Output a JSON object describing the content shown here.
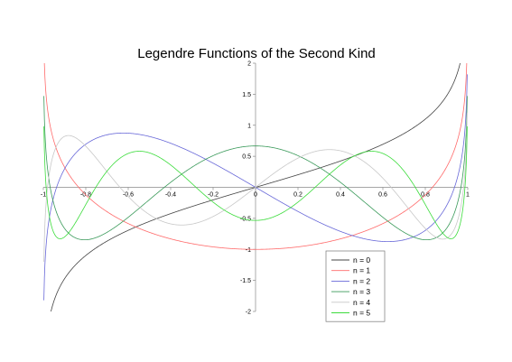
{
  "chart_data": {
    "type": "line",
    "title": "Legendre Functions of the Second Kind",
    "xlabel": "",
    "ylabel": "",
    "xlim": [
      -1,
      1
    ],
    "ylim": [
      -2,
      2
    ],
    "grid": false,
    "legend_position": "bottom-right",
    "x_ticks": [
      -1,
      -0.8,
      -0.6,
      -0.4,
      -0.2,
      0,
      0.2,
      0.4,
      0.6,
      0.8,
      1
    ],
    "x_tick_labels": [
      "-1",
      "-0.8",
      "-0.6",
      "-0.4",
      "-0.2",
      "0",
      "0.2",
      "0.4",
      "0.6",
      "0.8",
      "1"
    ],
    "y_ticks": [
      -2,
      -1.5,
      -1,
      -0.5,
      0.5,
      1,
      1.5,
      2
    ],
    "y_tick_labels": [
      "-2",
      "-1.5",
      "-1",
      "-0.5",
      "0.5",
      "1",
      "1.5",
      "2"
    ],
    "series": [
      {
        "name": "n = 0",
        "order": 0,
        "color": "#444444"
      },
      {
        "name": "n = 1",
        "order": 1,
        "color": "#ff6a6a"
      },
      {
        "name": "n = 2",
        "order": 2,
        "color": "#6868d8"
      },
      {
        "name": "n = 3",
        "order": 3,
        "color": "#3a9a5a"
      },
      {
        "name": "n = 4",
        "order": 4,
        "color": "#c8c8c8"
      },
      {
        "name": "n = 5",
        "order": 5,
        "color": "#3cdc3c"
      }
    ]
  }
}
